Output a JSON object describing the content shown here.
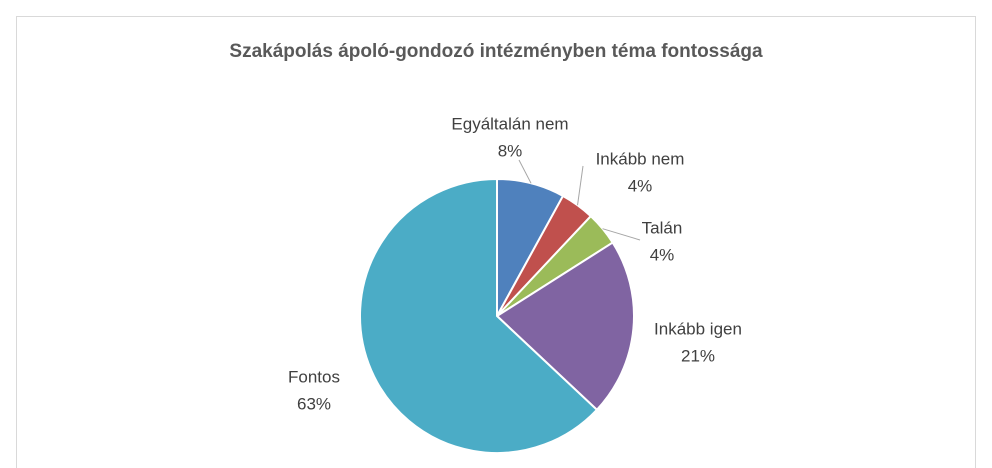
{
  "chart_data": {
    "type": "pie",
    "title": "Szakápolás ápoló-gondozó intézményben téma fontossága",
    "categories": [
      "Egyáltalán nem",
      "Inkább nem",
      "Talán",
      "Inkább igen",
      "Fontos"
    ],
    "values": [
      8,
      4,
      4,
      21,
      63
    ],
    "value_labels": [
      "8%",
      "4%",
      "4%",
      "21%",
      "63%"
    ],
    "colors": [
      "#4f81bd",
      "#c0504d",
      "#9bbb59",
      "#8064a2",
      "#4bacc6"
    ]
  }
}
